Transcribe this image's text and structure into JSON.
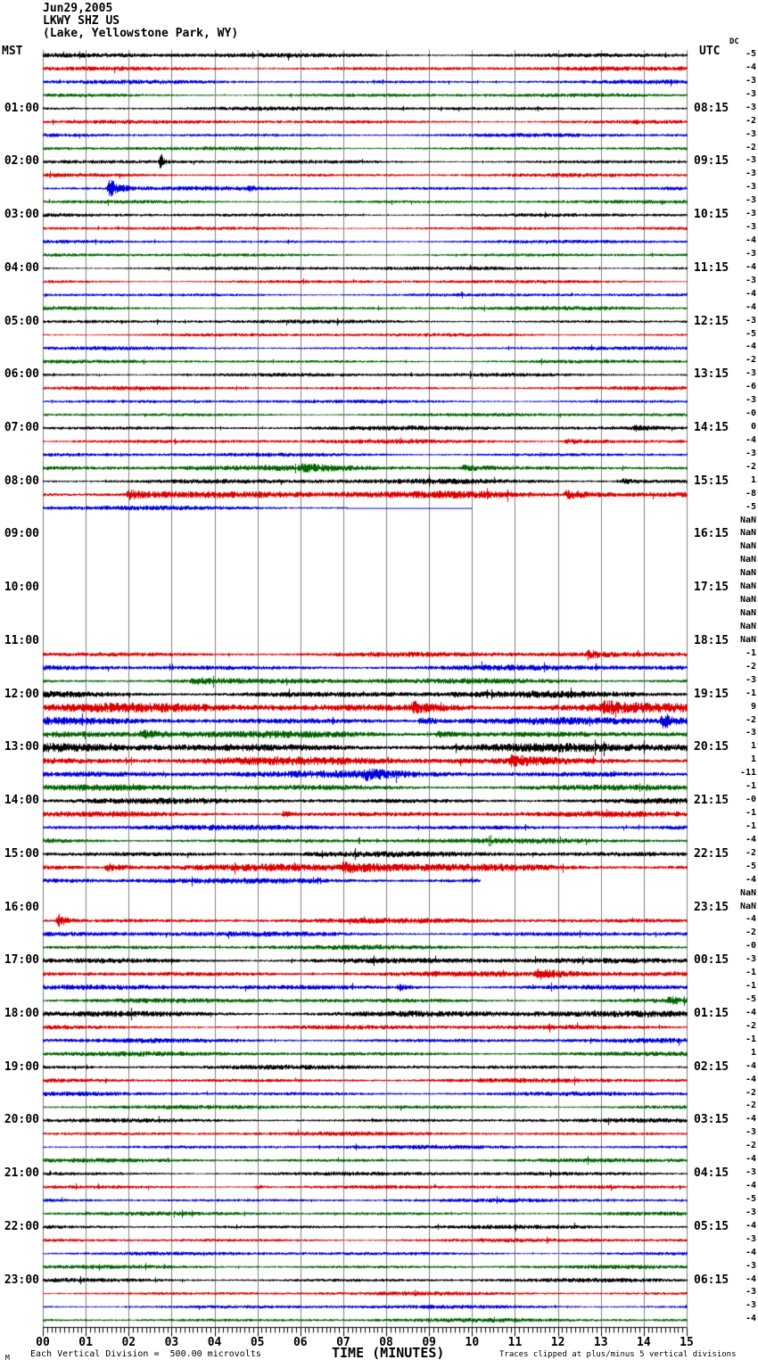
{
  "header": {
    "date": "Jun29,2005",
    "station": "LKWY SHZ US",
    "location": "(Lake, Yellowstone Park, WY)"
  },
  "axes": {
    "left_header": "MST",
    "right_header": "UTC",
    "dc_header": "DC",
    "x_title": "TIME (MINUTES)",
    "x_ticks": [
      "00",
      "01",
      "02",
      "03",
      "04",
      "05",
      "06",
      "07",
      "08",
      "09",
      "10",
      "11",
      "12",
      "13",
      "14",
      "15"
    ],
    "minor_ticks_per_minute": 10
  },
  "footer": {
    "corner_mark": "M",
    "scale_note": "Each Vertical Division =  500.00 microvolts",
    "clip_note": "Traces clipped at plus/minus 5 vertical divisions"
  },
  "colors": {
    "trace_cycle": [
      "#000000",
      "#dd0000",
      "#0000dd",
      "#006600"
    ],
    "grid": "#808080",
    "axis": "#000000",
    "background": "#ffffff"
  },
  "chart_data": {
    "type": "line",
    "subtype": "helicorder-seismogram",
    "title": "LKWY SHZ US (Lake, Yellowstone Park, WY) Jun29,2005",
    "xlabel": "TIME (MINUTES)",
    "x_range_minutes": [
      0,
      15
    ],
    "minutes_per_trace": 15,
    "traces_per_hour": 4,
    "division_microvolts": 500.0,
    "clip_divisions": 5,
    "legend_position": "none",
    "grid": "vertical-only",
    "rows": [
      {
        "m": "00:00",
        "dc": "-5",
        "a": 2.0
      },
      {
        "m": "00:15",
        "dc": "-4",
        "a": 1.8
      },
      {
        "m": "00:30",
        "dc": "-3",
        "a": 1.7
      },
      {
        "m": "00:45",
        "dc": "-3",
        "a": 1.6
      },
      {
        "m": "01:00",
        "l": "01:00",
        "u": "08:15",
        "dc": "-3",
        "a": 1.7
      },
      {
        "m": "01:15",
        "dc": "-2",
        "a": 1.7
      },
      {
        "m": "01:30",
        "dc": "-3",
        "a": 1.6
      },
      {
        "m": "01:45",
        "dc": "-2",
        "a": 1.6
      },
      {
        "m": "02:00",
        "l": "02:00",
        "u": "09:15",
        "dc": "-3",
        "a": 1.6,
        "ev": [
          [
            2.75,
            9,
            0.12
          ]
        ]
      },
      {
        "m": "02:15",
        "dc": "-3",
        "a": 1.6
      },
      {
        "m": "02:30",
        "dc": "-3",
        "a": 1.7,
        "ev": [
          [
            1.55,
            11,
            0.45
          ],
          [
            4.8,
            2.5,
            0.2
          ]
        ]
      },
      {
        "m": "02:45",
        "dc": "-3",
        "a": 1.5
      },
      {
        "m": "03:00",
        "l": "03:00",
        "u": "10:15",
        "dc": "-3",
        "a": 1.6
      },
      {
        "m": "03:15",
        "dc": "-3",
        "a": 1.5
      },
      {
        "m": "03:30",
        "dc": "-4",
        "a": 1.5
      },
      {
        "m": "03:45",
        "dc": "-3",
        "a": 1.5
      },
      {
        "m": "04:00",
        "l": "04:00",
        "u": "11:15",
        "dc": "-4",
        "a": 1.6
      },
      {
        "m": "04:15",
        "dc": "-3",
        "a": 1.5
      },
      {
        "m": "04:30",
        "dc": "-4",
        "a": 1.5
      },
      {
        "m": "04:45",
        "dc": "-4",
        "a": 1.6
      },
      {
        "m": "05:00",
        "l": "05:00",
        "u": "12:15",
        "dc": "-3",
        "a": 1.6
      },
      {
        "m": "05:15",
        "dc": "-5",
        "a": 1.5
      },
      {
        "m": "05:30",
        "dc": "-4",
        "a": 1.5
      },
      {
        "m": "05:45",
        "dc": "-2",
        "a": 1.5
      },
      {
        "m": "06:00",
        "l": "06:00",
        "u": "13:15",
        "dc": "-3",
        "a": 1.7
      },
      {
        "m": "06:15",
        "dc": "-6",
        "a": 1.6
      },
      {
        "m": "06:30",
        "dc": "-3",
        "a": 1.5
      },
      {
        "m": "06:45",
        "dc": "-0",
        "a": 1.5
      },
      {
        "m": "07:00",
        "l": "07:00",
        "u": "14:15",
        "dc": "0",
        "a": 1.9,
        "ev": [
          [
            13.8,
            2.5,
            0.6
          ]
        ]
      },
      {
        "m": "07:15",
        "dc": "-4",
        "a": 1.8,
        "ev": [
          [
            12.2,
            2.5,
            1.2
          ]
        ]
      },
      {
        "m": "07:30",
        "dc": "-3",
        "a": 1.7
      },
      {
        "m": "07:45",
        "dc": "-2",
        "a": 2.2,
        "ev": [
          [
            6.0,
            2.5,
            2.5
          ],
          [
            9.8,
            3,
            0.8
          ]
        ]
      },
      {
        "m": "08:00",
        "l": "08:00",
        "u": "15:15",
        "dc": "1",
        "a": 2.2,
        "ev": [
          [
            13.5,
            2.5,
            0.8
          ]
        ]
      },
      {
        "m": "08:15",
        "dc": "-8",
        "a": 3.2,
        "ev": [
          [
            2.0,
            4,
            1.0
          ],
          [
            12.2,
            4,
            1.5
          ]
        ]
      },
      {
        "m": "08:30",
        "dc": "-5",
        "a": 2.0,
        "end": 7.1,
        "flat": 10.0
      },
      {
        "m": "08:45",
        "dc": "NaN",
        "a": 0
      },
      {
        "m": "09:00",
        "l": "09:00",
        "u": "16:15",
        "dc": "NaN",
        "a": 0
      },
      {
        "m": "09:15",
        "dc": "NaN",
        "a": 0
      },
      {
        "m": "09:30",
        "dc": "NaN",
        "a": 0
      },
      {
        "m": "09:45",
        "dc": "NaN",
        "a": 0
      },
      {
        "m": "10:00",
        "l": "10:00",
        "u": "17:15",
        "dc": "NaN",
        "a": 0
      },
      {
        "m": "10:15",
        "dc": "NaN",
        "a": 0
      },
      {
        "m": "10:30",
        "dc": "NaN",
        "a": 0
      },
      {
        "m": "10:45",
        "dc": "NaN",
        "a": 0
      },
      {
        "m": "11:00",
        "l": "11:00",
        "u": "18:15",
        "dc": "NaN",
        "a": 0
      },
      {
        "m": "11:15",
        "dc": "-1",
        "a": 2.2,
        "ev": [
          [
            12.7,
            4.5,
            0.4
          ]
        ]
      },
      {
        "m": "11:30",
        "dc": "-2",
        "a": 2.4
      },
      {
        "m": "11:45",
        "dc": "-3",
        "a": 2.4,
        "ev": [
          [
            3.5,
            2.5,
            1.0
          ]
        ]
      },
      {
        "m": "12:00",
        "l": "12:00",
        "u": "19:15",
        "dc": "-1",
        "a": 2.8
      },
      {
        "m": "12:15",
        "dc": "9",
        "a": 3.8,
        "ev": [
          [
            8.6,
            5,
            1.2
          ],
          [
            13.1,
            5,
            0.7
          ]
        ]
      },
      {
        "m": "12:30",
        "dc": "-2",
        "a": 3.0,
        "ev": [
          [
            8.8,
            3,
            0.8
          ],
          [
            14.45,
            8,
            0.5
          ]
        ]
      },
      {
        "m": "12:45",
        "dc": "-3",
        "a": 3.0,
        "ev": [
          [
            2.3,
            3,
            1.0
          ],
          [
            9.2,
            3,
            1.2
          ]
        ]
      },
      {
        "m": "13:00",
        "l": "13:00",
        "u": "20:15",
        "dc": "1",
        "a": 3.8
      },
      {
        "m": "13:15",
        "dc": "1",
        "a": 3.4,
        "ev": [
          [
            10.9,
            4,
            1.5
          ]
        ]
      },
      {
        "m": "13:30",
        "dc": "-11",
        "a": 3.0,
        "ev": [
          [
            7.5,
            4,
            1.0
          ]
        ]
      },
      {
        "m": "13:45",
        "dc": "-1",
        "a": 2.6
      },
      {
        "m": "14:00",
        "l": "14:00",
        "u": "21:15",
        "dc": "-0",
        "a": 2.4
      },
      {
        "m": "14:15",
        "dc": "-1",
        "a": 2.4,
        "ev": [
          [
            5.6,
            3,
            0.5
          ]
        ]
      },
      {
        "m": "14:30",
        "dc": "-1",
        "a": 2.2
      },
      {
        "m": "14:45",
        "dc": "-4",
        "a": 2.2
      },
      {
        "m": "15:00",
        "l": "15:00",
        "u": "22:15",
        "dc": "-2",
        "a": 2.4
      },
      {
        "m": "15:15",
        "dc": "-5",
        "a": 3.2,
        "ev": [
          [
            1.5,
            4,
            0.8
          ],
          [
            7.0,
            4,
            2.0
          ]
        ]
      },
      {
        "m": "15:30",
        "dc": "-4",
        "a": 2.4,
        "end": 10.2
      },
      {
        "m": "15:45",
        "dc": "NaN",
        "a": 0
      },
      {
        "m": "16:00",
        "l": "16:00",
        "u": "23:15",
        "dc": "NaN",
        "a": 0
      },
      {
        "m": "16:15",
        "dc": "-4",
        "a": 2.2,
        "ev": [
          [
            0.35,
            8,
            0.3
          ]
        ]
      },
      {
        "m": "16:30",
        "dc": "-2",
        "a": 2.2
      },
      {
        "m": "16:45",
        "dc": "-0",
        "a": 2.0
      },
      {
        "m": "17:00",
        "l": "17:00",
        "u": "00:15",
        "dc": "-3",
        "a": 2.4
      },
      {
        "m": "17:15",
        "dc": "-1",
        "a": 2.4,
        "ev": [
          [
            11.5,
            4.5,
            1.2
          ]
        ]
      },
      {
        "m": "17:30",
        "dc": "-1",
        "a": 2.2,
        "ev": [
          [
            8.3,
            3,
            0.6
          ]
        ]
      },
      {
        "m": "17:45",
        "dc": "-5",
        "a": 2.0,
        "ev": [
          [
            14.6,
            4,
            0.3
          ]
        ]
      },
      {
        "m": "18:00",
        "l": "18:00",
        "u": "01:15",
        "dc": "-4",
        "a": 2.8
      },
      {
        "m": "18:15",
        "dc": "-2",
        "a": 2.0
      },
      {
        "m": "18:30",
        "dc": "-1",
        "a": 2.0
      },
      {
        "m": "18:45",
        "dc": "1",
        "a": 2.0
      },
      {
        "m": "19:00",
        "l": "19:00",
        "u": "02:15",
        "dc": "-4",
        "a": 1.9
      },
      {
        "m": "19:15",
        "dc": "-4",
        "a": 1.9
      },
      {
        "m": "19:30",
        "dc": "-2",
        "a": 1.8
      },
      {
        "m": "19:45",
        "dc": "-2",
        "a": 1.8
      },
      {
        "m": "20:00",
        "l": "20:00",
        "u": "03:15",
        "dc": "-4",
        "a": 1.8
      },
      {
        "m": "20:15",
        "dc": "-3",
        "a": 1.7
      },
      {
        "m": "20:30",
        "dc": "-2",
        "a": 1.7
      },
      {
        "m": "20:45",
        "dc": "-4",
        "a": 1.7
      },
      {
        "m": "21:00",
        "l": "21:00",
        "u": "04:15",
        "dc": "-3",
        "a": 1.7
      },
      {
        "m": "21:15",
        "dc": "-4",
        "a": 1.7,
        "ev": [
          [
            5.0,
            2.5,
            0.3
          ]
        ]
      },
      {
        "m": "21:30",
        "dc": "-5",
        "a": 1.6
      },
      {
        "m": "21:45",
        "dc": "-3",
        "a": 1.6
      },
      {
        "m": "22:00",
        "l": "22:00",
        "u": "05:15",
        "dc": "-4",
        "a": 1.7
      },
      {
        "m": "22:15",
        "dc": "-3",
        "a": 1.6
      },
      {
        "m": "22:30",
        "dc": "-4",
        "a": 1.6
      },
      {
        "m": "22:45",
        "dc": "-3",
        "a": 1.6
      },
      {
        "m": "23:00",
        "l": "23:00",
        "u": "06:15",
        "dc": "-4",
        "a": 1.7
      },
      {
        "m": "23:15",
        "dc": "-3",
        "a": 1.6
      },
      {
        "m": "23:30",
        "dc": "-3",
        "a": 1.6
      },
      {
        "m": "23:45",
        "dc": "-4",
        "a": 1.7
      }
    ]
  }
}
